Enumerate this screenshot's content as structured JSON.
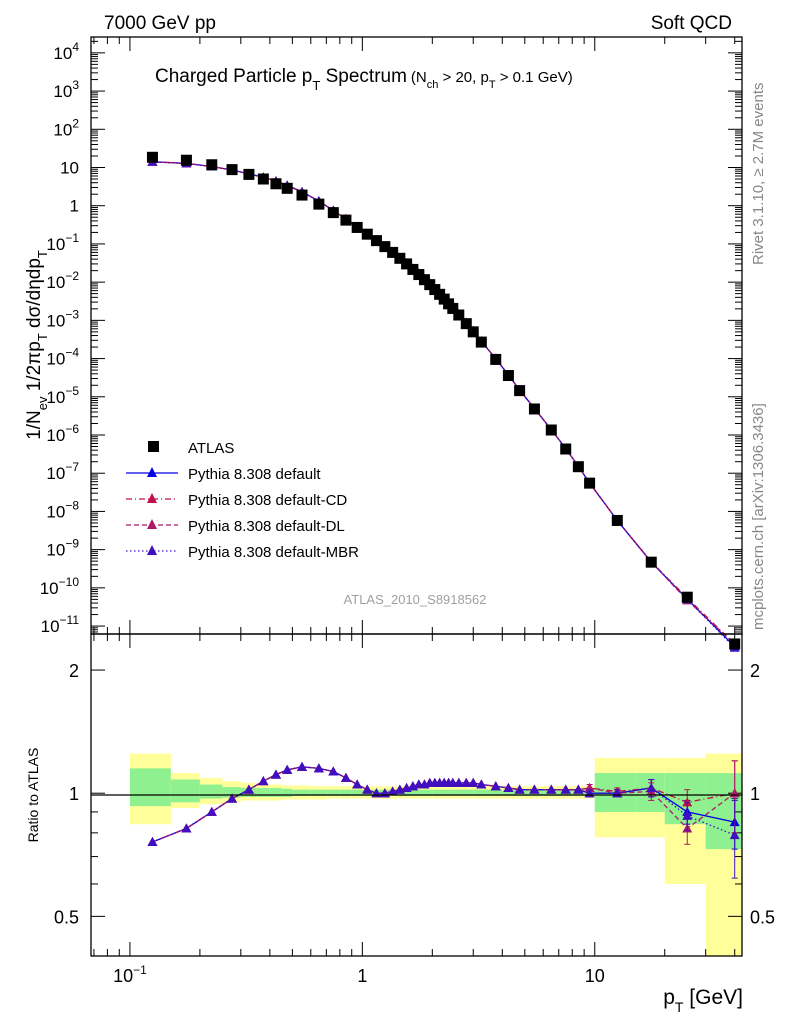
{
  "header": {
    "energy_label": "7000 GeV pp",
    "process_label": "Soft QCD",
    "analysis_id": "ATLAS_2010_S8918562",
    "side_label_rivet": "Rivet 3.1.10, ≥ 2.7M events",
    "side_label_site": "mcplots.cern.ch [arXiv:1306.3436]"
  },
  "chart_data": [
    {
      "type": "scatter",
      "title": "Charged Particle p_T Spectrum (N_ch > 20, p_T > 0.1 GeV)",
      "title_main": "Charged Particle p",
      "title_main_sub": "T",
      "title_main_tail": " Spectrum",
      "title_small_1": "(N",
      "title_small_1_sub": "ch",
      "title_small_2": " > 20, p",
      "title_small_2_sub": "T",
      "title_small_3": " > 0.1 GeV)",
      "ylabel": "1/N_ev 1/2πp_T dσ/dηdp_T",
      "ylabel_parts": [
        "1/N",
        "ev",
        " 1/2πp",
        "T",
        " dσ/dηdp",
        "T"
      ],
      "x_scale": "log",
      "y_scale": "log",
      "xlim": [
        0.068,
        43
      ],
      "ylim": [
        6.2e-12,
        26000.0
      ],
      "y_tick_labels": [
        {
          "base": "10",
          "exp": "4"
        },
        {
          "base": "10",
          "exp": "3"
        },
        {
          "base": "10",
          "exp": "2"
        },
        {
          "base": "10",
          "exp": ""
        },
        {
          "base": "1",
          "exp": ""
        },
        {
          "base": "10",
          "exp": "−1"
        },
        {
          "base": "10",
          "exp": "−2"
        },
        {
          "base": "10",
          "exp": "−3"
        },
        {
          "base": "10",
          "exp": "−4"
        },
        {
          "base": "10",
          "exp": "−5"
        },
        {
          "base": "10",
          "exp": "−6"
        },
        {
          "base": "10",
          "exp": "−7"
        },
        {
          "base": "10",
          "exp": "−8"
        },
        {
          "base": "10",
          "exp": "−9"
        },
        {
          "base": "10",
          "exp": "−10"
        },
        {
          "base": "10",
          "exp": "−11"
        }
      ],
      "legend_position": "lower-left",
      "x": [
        0.125,
        0.175,
        0.225,
        0.275,
        0.325,
        0.375,
        0.425,
        0.475,
        0.55,
        0.65,
        0.75,
        0.85,
        0.95,
        1.05,
        1.15,
        1.25,
        1.35,
        1.45,
        1.55,
        1.65,
        1.75,
        1.85,
        1.95,
        2.05,
        2.15,
        2.25,
        2.35,
        2.45,
        2.6,
        2.8,
        3.0,
        3.25,
        3.75,
        4.25,
        4.75,
        5.5,
        6.5,
        7.5,
        8.5,
        9.5,
        12.5,
        17.5,
        25.0,
        40.0
      ],
      "series": [
        {
          "name": "ATLAS",
          "marker": "square",
          "color": "#000000",
          "values": [
            18.5,
            15.5,
            11.8,
            8.8,
            6.6,
            5.0,
            3.75,
            2.85,
            1.9,
            1.1,
            0.66,
            0.42,
            0.27,
            0.18,
            0.122,
            0.085,
            0.06,
            0.042,
            0.03,
            0.0215,
            0.0158,
            0.0116,
            0.0086,
            0.0064,
            0.0048,
            0.0036,
            0.0027,
            0.00205,
            0.00138,
            0.00082,
            0.0005,
            0.00027,
            9.5e-05,
            3.6e-05,
            1.45e-05,
            4.8e-06,
            1.35e-06,
            4.3e-07,
            1.48e-07,
            5.5e-08,
            5.8e-09,
            4.7e-10,
            5.7e-11,
            3.4e-12
          ]
        },
        {
          "name": "Pythia 8.308 default",
          "marker": "triangle",
          "color": "#0000e0",
          "line": "solid",
          "values": [
            14.1,
            12.8,
            10.6,
            8.6,
            6.8,
            5.55,
            4.4,
            3.4,
            2.3,
            1.32,
            0.75,
            0.45,
            0.282,
            0.183,
            0.122,
            0.085,
            0.061,
            0.0433,
            0.0313,
            0.0226,
            0.0167,
            0.0123,
            0.0092,
            0.0068,
            0.0051,
            0.0038,
            0.0029,
            0.0022,
            0.00146,
            0.00087,
            0.00053,
            0.000284,
            9.9e-05,
            3.75e-05,
            1.5e-05,
            4.95e-06,
            1.39e-06,
            4.4e-07,
            1.52e-07,
            5.5e-08,
            5.8e-09,
            4.7e-10,
            5.1e-11,
            2.9e-12
          ]
        },
        {
          "name": "Pythia 8.308 default-CD",
          "marker": "triangle",
          "color": "#c0104a",
          "line": "dashdot",
          "values": [
            14.1,
            12.8,
            10.6,
            8.6,
            6.8,
            5.55,
            4.4,
            3.4,
            2.3,
            1.32,
            0.75,
            0.45,
            0.282,
            0.183,
            0.122,
            0.085,
            0.061,
            0.0433,
            0.0313,
            0.0226,
            0.0167,
            0.0123,
            0.0092,
            0.0068,
            0.0051,
            0.0038,
            0.0029,
            0.0022,
            0.00146,
            0.00087,
            0.00053,
            0.000284,
            9.9e-05,
            3.75e-05,
            1.5e-05,
            4.95e-06,
            1.39e-06,
            4.4e-07,
            1.52e-07,
            5.6e-08,
            5.8e-09,
            4.8e-10,
            5.4e-11,
            3.4e-12
          ]
        },
        {
          "name": "Pythia 8.308 default-DL",
          "marker": "triangle",
          "color": "#b0186a",
          "line": "dashed",
          "values": [
            14.1,
            12.8,
            10.6,
            8.6,
            6.8,
            5.55,
            4.4,
            3.4,
            2.3,
            1.32,
            0.75,
            0.45,
            0.282,
            0.183,
            0.122,
            0.085,
            0.061,
            0.0433,
            0.0313,
            0.0226,
            0.0167,
            0.0123,
            0.0092,
            0.0068,
            0.0051,
            0.0038,
            0.0029,
            0.0022,
            0.00146,
            0.00087,
            0.00053,
            0.000284,
            9.9e-05,
            3.75e-05,
            1.5e-05,
            4.95e-06,
            1.39e-06,
            4.4e-07,
            1.52e-07,
            5.6e-08,
            5.8e-09,
            4.8e-10,
            4.7e-11,
            3.4e-12
          ]
        },
        {
          "name": "Pythia 8.308 default-MBR",
          "marker": "triangle",
          "color": "#4010c0",
          "line": "dotted",
          "values": [
            14.1,
            12.8,
            10.6,
            8.6,
            6.8,
            5.55,
            4.4,
            3.4,
            2.3,
            1.32,
            0.75,
            0.45,
            0.282,
            0.183,
            0.122,
            0.085,
            0.061,
            0.0433,
            0.0313,
            0.0226,
            0.0167,
            0.0123,
            0.0092,
            0.0068,
            0.0051,
            0.0038,
            0.0029,
            0.0022,
            0.00146,
            0.00087,
            0.00053,
            0.000284,
            9.9e-05,
            3.75e-05,
            1.5e-05,
            4.95e-06,
            1.39e-06,
            4.4e-07,
            1.52e-07,
            5.5e-08,
            5.8e-09,
            4.8e-10,
            5e-11,
            2.7e-12
          ]
        }
      ]
    },
    {
      "type": "scatter",
      "ylabel": "Ratio to ATLAS",
      "xlabel": "p_T [GeV]",
      "xlabel_parts": [
        "p",
        "T",
        "  [GeV]"
      ],
      "x_scale": "log",
      "y_scale": "log",
      "xlim": [
        0.068,
        43
      ],
      "ylim": [
        0.4,
        2.45
      ],
      "y_tick_labels": [
        "2",
        "1",
        "0.5"
      ],
      "y_tick_values": [
        2,
        1,
        0.5
      ],
      "x_tick_labels": [
        {
          "base": "10",
          "exp": "−1",
          "value": 0.1
        },
        {
          "base": "1",
          "exp": "",
          "value": 1
        },
        {
          "base": "10",
          "exp": "",
          "value": 10
        }
      ],
      "bands": {
        "edges": [
          0.1,
          0.15,
          0.2,
          0.25,
          0.3,
          0.35,
          0.4,
          0.45,
          0.5,
          0.6,
          0.7,
          0.8,
          0.9,
          1.0,
          1.5,
          2.0,
          2.5,
          3.0,
          4.0,
          5.0,
          6.0,
          7.0,
          8.0,
          9.0,
          10.0,
          15.0,
          20.0,
          30.0,
          50.0
        ],
        "yellow_lo": [
          0.84,
          0.92,
          0.94,
          0.95,
          0.96,
          0.96,
          0.96,
          0.965,
          0.965,
          0.965,
          0.97,
          0.97,
          0.97,
          0.97,
          0.97,
          0.97,
          0.97,
          0.97,
          0.97,
          0.97,
          0.97,
          0.97,
          0.97,
          0.97,
          0.78,
          0.78,
          0.6,
          0.35
        ],
        "yellow_hi": [
          1.25,
          1.12,
          1.09,
          1.07,
          1.06,
          1.05,
          1.05,
          1.045,
          1.045,
          1.04,
          1.04,
          1.04,
          1.04,
          1.04,
          1.04,
          1.04,
          1.04,
          1.04,
          1.04,
          1.04,
          1.04,
          1.04,
          1.04,
          1.04,
          1.22,
          1.22,
          1.22,
          1.25
        ],
        "green_lo": [
          0.93,
          0.95,
          0.97,
          0.975,
          0.98,
          0.98,
          0.98,
          0.98,
          0.985,
          0.985,
          0.985,
          0.985,
          0.985,
          0.985,
          0.985,
          0.985,
          0.985,
          0.985,
          0.985,
          0.985,
          0.985,
          0.985,
          0.985,
          0.985,
          0.9,
          0.9,
          0.84,
          0.73
        ],
        "green_hi": [
          1.15,
          1.08,
          1.05,
          1.035,
          1.03,
          1.03,
          1.03,
          1.025,
          1.02,
          1.02,
          1.02,
          1.02,
          1.02,
          1.02,
          1.02,
          1.02,
          1.02,
          1.02,
          1.02,
          1.02,
          1.02,
          1.02,
          1.02,
          1.02,
          1.12,
          1.12,
          1.12,
          1.12
        ]
      },
      "x": [
        0.125,
        0.175,
        0.225,
        0.275,
        0.325,
        0.375,
        0.425,
        0.475,
        0.55,
        0.65,
        0.75,
        0.85,
        0.95,
        1.05,
        1.15,
        1.25,
        1.35,
        1.45,
        1.55,
        1.65,
        1.75,
        1.85,
        1.95,
        2.05,
        2.15,
        2.25,
        2.35,
        2.45,
        2.6,
        2.8,
        3.0,
        3.25,
        3.75,
        4.25,
        4.75,
        5.5,
        6.5,
        7.5,
        8.5,
        9.5,
        12.5,
        17.5,
        25.0,
        40.0
      ],
      "series": [
        {
          "name": "Pythia 8.308 default",
          "color": "#0000e0",
          "line": "solid",
          "values": [
            0.76,
            0.82,
            0.9,
            0.97,
            1.02,
            1.07,
            1.11,
            1.14,
            1.16,
            1.15,
            1.13,
            1.09,
            1.05,
            1.02,
            1.0,
            1.0,
            1.01,
            1.02,
            1.03,
            1.04,
            1.05,
            1.05,
            1.06,
            1.06,
            1.06,
            1.06,
            1.06,
            1.06,
            1.06,
            1.06,
            1.06,
            1.05,
            1.04,
            1.03,
            1.02,
            1.02,
            1.02,
            1.02,
            1.02,
            1.0,
            1.0,
            1.03,
            0.9,
            0.85
          ],
          "err": [
            0,
            0,
            0,
            0,
            0,
            0,
            0,
            0,
            0,
            0,
            0,
            0,
            0,
            0,
            0,
            0,
            0,
            0,
            0,
            0,
            0,
            0,
            0,
            0,
            0,
            0,
            0,
            0,
            0,
            0,
            0,
            0,
            0,
            0,
            0,
            0,
            0,
            0,
            0,
            0.02,
            0.02,
            0.05,
            0.06,
            0.12
          ]
        },
        {
          "name": "Pythia 8.308 default-CD",
          "color": "#c0104a",
          "line": "dashdot",
          "values": [
            0.76,
            0.82,
            0.9,
            0.97,
            1.02,
            1.07,
            1.11,
            1.14,
            1.16,
            1.15,
            1.13,
            1.09,
            1.05,
            1.02,
            1.0,
            1.0,
            1.01,
            1.02,
            1.03,
            1.04,
            1.05,
            1.05,
            1.06,
            1.06,
            1.06,
            1.06,
            1.06,
            1.06,
            1.06,
            1.06,
            1.06,
            1.05,
            1.04,
            1.03,
            1.02,
            1.02,
            1.02,
            1.02,
            1.02,
            1.03,
            1.01,
            1.03,
            0.95,
            1.0
          ],
          "err": [
            0,
            0,
            0,
            0,
            0,
            0,
            0,
            0,
            0,
            0,
            0,
            0,
            0,
            0,
            0,
            0,
            0,
            0,
            0,
            0,
            0,
            0,
            0,
            0,
            0,
            0,
            0,
            0,
            0,
            0,
            0,
            0,
            0,
            0,
            0,
            0,
            0,
            0,
            0,
            0.02,
            0.02,
            0.05,
            0.07,
            0.2
          ]
        },
        {
          "name": "Pythia 8.308 default-DL",
          "color": "#b0186a",
          "line": "dashed",
          "values": [
            0.76,
            0.82,
            0.9,
            0.97,
            1.02,
            1.07,
            1.11,
            1.14,
            1.16,
            1.15,
            1.13,
            1.09,
            1.05,
            1.02,
            1.0,
            1.0,
            1.01,
            1.02,
            1.03,
            1.04,
            1.05,
            1.05,
            1.06,
            1.06,
            1.06,
            1.06,
            1.06,
            1.06,
            1.06,
            1.06,
            1.06,
            1.05,
            1.04,
            1.03,
            1.02,
            1.02,
            1.02,
            1.02,
            1.02,
            1.03,
            1.0,
            1.01,
            0.82,
            1.0
          ],
          "err": [
            0,
            0,
            0,
            0,
            0,
            0,
            0,
            0,
            0,
            0,
            0,
            0,
            0,
            0,
            0,
            0,
            0,
            0,
            0,
            0,
            0,
            0,
            0,
            0,
            0,
            0,
            0,
            0,
            0,
            0,
            0,
            0,
            0,
            0,
            0,
            0,
            0,
            0,
            0,
            0.02,
            0.02,
            0.05,
            0.07,
            0.2
          ]
        },
        {
          "name": "Pythia 8.308 default-MBR",
          "color": "#4010c0",
          "line": "dotted",
          "values": [
            0.76,
            0.82,
            0.9,
            0.97,
            1.02,
            1.07,
            1.11,
            1.14,
            1.16,
            1.15,
            1.13,
            1.09,
            1.05,
            1.02,
            1.0,
            1.0,
            1.01,
            1.02,
            1.03,
            1.04,
            1.05,
            1.05,
            1.06,
            1.06,
            1.06,
            1.06,
            1.06,
            1.06,
            1.06,
            1.06,
            1.06,
            1.05,
            1.04,
            1.03,
            1.02,
            1.02,
            1.02,
            1.02,
            1.02,
            1.0,
            1.0,
            1.03,
            0.88,
            0.79
          ],
          "err": [
            0,
            0,
            0,
            0,
            0,
            0,
            0,
            0,
            0,
            0,
            0,
            0,
            0,
            0,
            0,
            0,
            0,
            0,
            0,
            0,
            0,
            0,
            0,
            0,
            0,
            0,
            0,
            0,
            0,
            0,
            0,
            0,
            0,
            0,
            0,
            0,
            0,
            0,
            0,
            0.02,
            0.02,
            0.05,
            0.07,
            0.17
          ]
        }
      ]
    }
  ],
  "legend": {
    "atlas": "ATLAS",
    "default": "Pythia 8.308 default",
    "cd": "Pythia 8.308 default-CD",
    "dl": "Pythia 8.308 default-DL",
    "mbr": "Pythia 8.308 default-MBR"
  },
  "colors": {
    "data": "#000000",
    "default": "#0000e0",
    "cd": "#c0104a",
    "dl": "#b0186a",
    "mbr": "#4010c0",
    "band_outer": "#ffff99",
    "band_inner": "#8ef08e",
    "side_text": "#888888"
  }
}
